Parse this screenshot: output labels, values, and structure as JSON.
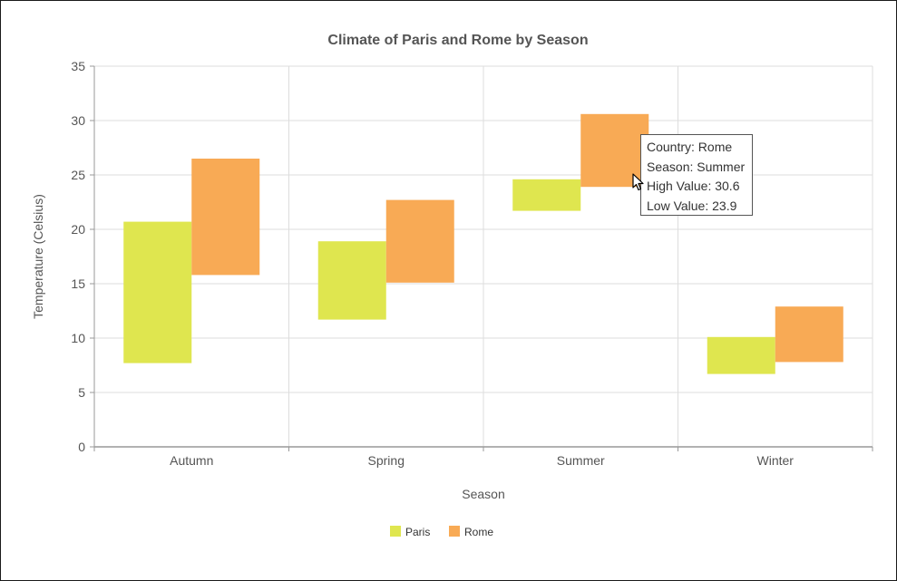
{
  "chart_data": {
    "type": "range-bar",
    "title": "Climate of Paris and Rome by Season",
    "xlabel": "Season",
    "ylabel": "Temperature (Celsius)",
    "categories": [
      "Autumn",
      "Spring",
      "Summer",
      "Winter"
    ],
    "ylim": [
      0,
      35
    ],
    "yticks": [
      "0",
      "5",
      "10",
      "15",
      "20",
      "25",
      "30",
      "35"
    ],
    "grid": true,
    "legend_position": "bottom",
    "series": [
      {
        "name": "Paris",
        "color": "#dfe64f",
        "low": [
          7.7,
          11.7,
          21.7,
          6.7
        ],
        "high": [
          20.7,
          18.9,
          24.6,
          10.1
        ]
      },
      {
        "name": "Rome",
        "color": "#f8aa55",
        "low": [
          15.8,
          15.1,
          23.9,
          7.8
        ],
        "high": [
          26.5,
          22.7,
          30.6,
          12.9
        ]
      }
    ]
  },
  "tooltip": {
    "country": "Country: Rome",
    "season": "Season: Summer",
    "high": "High Value: 30.6",
    "low": "Low Value: 23.9"
  }
}
